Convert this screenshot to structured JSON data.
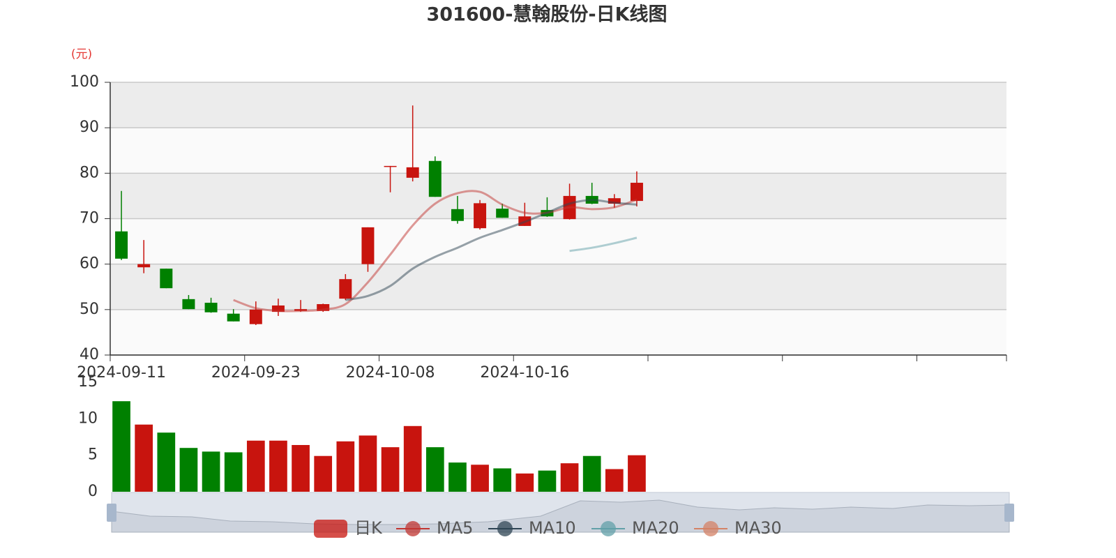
{
  "chart_data": [
    {
      "type": "candlestick",
      "title": "301600-慧翰股份-日K线图",
      "y_axis_label": "(元)",
      "categories": [
        "2024-09-11",
        null,
        null,
        null,
        null,
        null,
        "2024-09-23",
        null,
        null,
        null,
        null,
        null,
        "2024-10-08",
        null,
        null,
        null,
        null,
        null,
        "2024-10-16",
        null,
        null,
        null,
        null,
        null,
        null,
        null,
        null,
        null,
        null,
        null,
        null,
        null,
        null,
        null,
        null,
        null,
        null,
        null,
        null,
        null
      ],
      "series": [
        {
          "name": "日K",
          "up_color": "#c8140e",
          "down_color": "#008000",
          "open": [
            67.2,
            59.3,
            59.0,
            52.3,
            51.5,
            49.1,
            46.8,
            49.5,
            49.7,
            49.7,
            52.4,
            60.0,
            81.5,
            79.0,
            82.7,
            72.1,
            67.9,
            72.2,
            68.4,
            71.9,
            69.9,
            75.0,
            73.3,
            73.9,
            null,
            null,
            null,
            null,
            null,
            null,
            null,
            null,
            null,
            null,
            null,
            null,
            null,
            null,
            null,
            null
          ],
          "close": [
            61.2,
            60.0,
            54.7,
            50.1,
            49.4,
            47.4,
            50.0,
            50.9,
            50.1,
            51.2,
            56.7,
            68.1,
            81.6,
            81.3,
            74.8,
            69.5,
            73.4,
            70.2,
            70.5,
            70.5,
            75.0,
            73.3,
            74.5,
            77.9,
            null,
            null,
            null,
            null,
            null,
            null,
            null,
            null,
            null,
            null,
            null,
            null,
            null,
            null,
            null,
            null
          ],
          "low": [
            60.9,
            58.0,
            54.7,
            50.1,
            49.3,
            47.4,
            46.6,
            48.6,
            49.5,
            49.5,
            52.1,
            58.3,
            75.8,
            78.2,
            74.8,
            68.9,
            67.6,
            70.2,
            68.4,
            70.4,
            69.8,
            73.2,
            72.4,
            72.7,
            null,
            null,
            null,
            null,
            null,
            null,
            null,
            null,
            null,
            null,
            null,
            null,
            null,
            null,
            null,
            null
          ],
          "high": [
            76.1,
            65.3,
            59.0,
            53.2,
            52.6,
            50.1,
            51.8,
            52.4,
            52.1,
            51.3,
            57.8,
            68.1,
            81.6,
            94.9,
            83.7,
            75.0,
            74.1,
            73.3,
            73.5,
            74.7,
            77.7,
            77.9,
            75.4,
            80.4,
            null,
            null,
            null,
            null,
            null,
            null,
            null,
            null,
            null,
            null,
            null,
            null,
            null,
            null,
            null,
            null
          ]
        },
        {
          "name": "MA5",
          "color": "#c23531",
          "values": [
            null,
            null,
            null,
            null,
            null,
            52.1,
            50.3,
            49.7,
            49.7,
            50.0,
            51.2,
            56.0,
            62.1,
            68.5,
            73.3,
            75.6,
            75.9,
            73.1,
            71.3,
            71.3,
            72.5,
            72.1,
            72.5,
            74.2,
            null,
            null,
            null,
            null,
            null,
            null,
            null,
            null,
            null,
            null,
            null,
            null,
            null,
            null,
            null,
            null
          ]
        },
        {
          "name": "MA10",
          "color": "#2f4554",
          "values": [
            null,
            null,
            null,
            null,
            null,
            null,
            null,
            null,
            null,
            null,
            52.1,
            53.0,
            55.2,
            59.0,
            61.6,
            63.6,
            65.8,
            67.5,
            69.3,
            71.3,
            73.3,
            74.1,
            73.5,
            73.1,
            null,
            null,
            null,
            null,
            null,
            null,
            null,
            null,
            null,
            null,
            null,
            null,
            null,
            null,
            null,
            null
          ]
        },
        {
          "name": "MA20",
          "color": "#61a0a8",
          "values": [
            null,
            null,
            null,
            null,
            null,
            null,
            null,
            null,
            null,
            null,
            null,
            null,
            null,
            null,
            null,
            null,
            null,
            null,
            null,
            null,
            62.9,
            63.6,
            64.6,
            65.8,
            null,
            null,
            null,
            null,
            null,
            null,
            null,
            null,
            null,
            null,
            null,
            null,
            null,
            null,
            null,
            null
          ]
        },
        {
          "name": "MA30",
          "color": "#d48265",
          "values": [
            null,
            null,
            null,
            null,
            null,
            null,
            null,
            null,
            null,
            null,
            null,
            null,
            null,
            null,
            null,
            null,
            null,
            null,
            null,
            null,
            null,
            null,
            null,
            null,
            null,
            null,
            null,
            null,
            null,
            null,
            null,
            null,
            null,
            null,
            null,
            null,
            null,
            null,
            null,
            null
          ]
        }
      ],
      "ylim": [
        40,
        100
      ],
      "yticks": [
        40,
        50,
        60,
        70,
        80,
        90,
        100
      ],
      "grid": true,
      "legend_position": "bottom"
    },
    {
      "type": "bar",
      "values": [
        12.4,
        9.2,
        8.1,
        6.0,
        5.5,
        5.4,
        7.0,
        7.0,
        6.4,
        4.9,
        6.9,
        7.7,
        6.1,
        9.0,
        6.1,
        4.0,
        3.7,
        3.2,
        2.5,
        2.9,
        3.9,
        4.9,
        3.1,
        5.0,
        null,
        null,
        null,
        null,
        null,
        null,
        null,
        null,
        null,
        null,
        null,
        null,
        null,
        null,
        null,
        null
      ],
      "ylim": [
        0,
        15
      ],
      "yticks": [
        0,
        5,
        10,
        15
      ]
    }
  ]
}
